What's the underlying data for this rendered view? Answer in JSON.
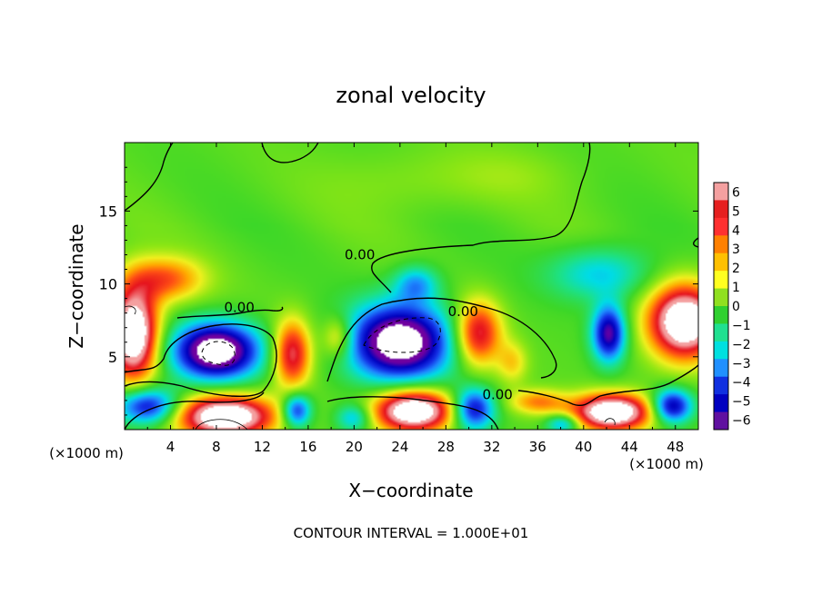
{
  "chart_data": {
    "type": "heatmap",
    "title": "zonal velocity",
    "xlabel": "X−coordinate",
    "ylabel": "Z−coordinate",
    "x_unit_left": "(×1000 m)",
    "x_unit_right": "(×1000 m)",
    "footer": "CONTOUR INTERVAL = 1.000E+01",
    "xlim": [
      0,
      50
    ],
    "ylim": [
      0,
      19.7
    ],
    "x_ticks": [
      "4",
      "8",
      "12",
      "16",
      "20",
      "24",
      "28",
      "32",
      "36",
      "40",
      "44",
      "48"
    ],
    "y_ticks": [
      "5",
      "10",
      "15"
    ],
    "colorbar": {
      "range": [
        -6,
        6
      ],
      "labels": [
        "6",
        "5",
        "4",
        "3",
        "2",
        "1",
        "0",
        "−1",
        "−2",
        "−3",
        "−4",
        "−5",
        "−6"
      ],
      "colors": [
        "#f4a0a0",
        "#e62020",
        "#ff3030",
        "#ff8000",
        "#ffc000",
        "#ffff20",
        "#90e020",
        "#30d030",
        "#20e090",
        "#00e0e0",
        "#2090ff",
        "#1030e0",
        "#0000c0",
        "#6010a0"
      ]
    },
    "contour_labels": [
      {
        "text": "0.00",
        "x": 20.5,
        "y": 12.0
      },
      {
        "text": "0.00",
        "x": 10.0,
        "y": 8.4
      },
      {
        "text": "0.00",
        "x": 29.5,
        "y": 8.1
      },
      {
        "text": "0.00",
        "x": 32.5,
        "y": 2.4
      }
    ],
    "blobs": [
      {
        "x": 3.5,
        "y": 10.3,
        "rx": 3.5,
        "ry": 1.6,
        "v": 3.6
      },
      {
        "x": 0.8,
        "y": 6.6,
        "rx": 2.2,
        "ry": 3.3,
        "v": 8.5
      },
      {
        "x": 8.0,
        "y": 5.4,
        "rx": 3.9,
        "ry": 2.0,
        "v": -8.5
      },
      {
        "x": 14.6,
        "y": 5.2,
        "rx": 1.7,
        "ry": 2.4,
        "v": 5.3
      },
      {
        "x": 18.6,
        "y": 6.3,
        "rx": 1.4,
        "ry": 1.5,
        "v": 2.8
      },
      {
        "x": 24.0,
        "y": 6.0,
        "rx": 4.6,
        "ry": 2.7,
        "v": -8.5
      },
      {
        "x": 30.8,
        "y": 6.6,
        "rx": 2.1,
        "ry": 2.3,
        "v": 5.3
      },
      {
        "x": 33.8,
        "y": 4.6,
        "rx": 1.4,
        "ry": 1.5,
        "v": 2.0
      },
      {
        "x": 25.4,
        "y": 10.0,
        "rx": 2.0,
        "ry": 1.3,
        "v": -3.0
      },
      {
        "x": 41.5,
        "y": 10.7,
        "rx": 4.6,
        "ry": 1.9,
        "v": -2.6
      },
      {
        "x": 42.2,
        "y": 6.6,
        "rx": 1.5,
        "ry": 2.0,
        "v": -6.2
      },
      {
        "x": 48.8,
        "y": 7.4,
        "rx": 3.2,
        "ry": 2.6,
        "v": 8.5
      },
      {
        "x": 2.0,
        "y": 1.6,
        "rx": 2.8,
        "ry": 1.3,
        "v": -5.5
      },
      {
        "x": 8.8,
        "y": 0.9,
        "rx": 4.4,
        "ry": 1.5,
        "v": 8.5
      },
      {
        "x": 15.0,
        "y": 1.3,
        "rx": 1.3,
        "ry": 1.2,
        "v": -5.0
      },
      {
        "x": 20.0,
        "y": 0.8,
        "rx": 1.6,
        "ry": 1.0,
        "v": -3.0
      },
      {
        "x": 25.2,
        "y": 1.3,
        "rx": 3.6,
        "ry": 1.5,
        "v": 8.5
      },
      {
        "x": 30.4,
        "y": 1.4,
        "rx": 1.9,
        "ry": 1.5,
        "v": -5.5
      },
      {
        "x": 36.0,
        "y": 1.9,
        "rx": 2.6,
        "ry": 0.9,
        "v": 3.0
      },
      {
        "x": 42.5,
        "y": 1.2,
        "rx": 3.6,
        "ry": 1.3,
        "v": 8.5
      },
      {
        "x": 47.7,
        "y": 1.6,
        "rx": 1.8,
        "ry": 1.2,
        "v": -6.0
      },
      {
        "x": 38.2,
        "y": 0.4,
        "rx": 1.5,
        "ry": 0.7,
        "v": -3.5
      },
      {
        "x": 25.0,
        "y": 17.0,
        "rx": 8.0,
        "ry": 2.3,
        "v": 0.6
      },
      {
        "x": 34.0,
        "y": 17.5,
        "rx": 6.0,
        "ry": 2.0,
        "v": 0.5
      }
    ]
  }
}
